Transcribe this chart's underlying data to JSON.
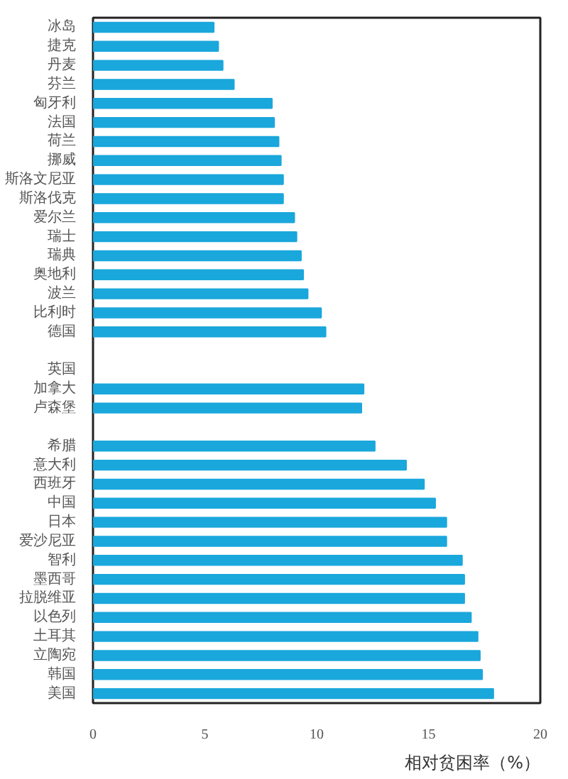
{
  "chart_data": {
    "type": "bar",
    "orientation": "horizontal",
    "xlabel": "相对贫困率（%）",
    "color": "#1aa7dc",
    "categories": [
      "冰岛",
      "捷克",
      "丹麦",
      "芬兰",
      "匈牙利",
      "法国",
      "荷兰",
      "挪威",
      "斯洛文尼亚",
      "斯洛伐克",
      "爱尔兰",
      "瑞士",
      "瑞典",
      "奥地利",
      "波兰",
      "比利时",
      "德国",
      null,
      "英国",
      "加拿大",
      "卢森堡",
      null,
      "希腊",
      "意大利",
      "西班牙",
      "中国",
      "日本",
      "爱沙尼亚",
      "智利",
      "墨西哥",
      "拉脱维亚",
      "以色列",
      "土耳其",
      "立陶宛",
      "韩国",
      "美国"
    ],
    "values": [
      5.4,
      5.6,
      5.8,
      6.3,
      8.0,
      8.1,
      8.3,
      8.4,
      8.5,
      8.5,
      9.0,
      9.1,
      9.3,
      9.4,
      9.6,
      10.2,
      10.4,
      null,
      null,
      12.1,
      12.0,
      null,
      12.6,
      14.0,
      14.8,
      15.3,
      15.8,
      15.8,
      16.5,
      16.6,
      16.6,
      16.9,
      17.2,
      17.3,
      17.4,
      17.9
    ],
    "xlim": [
      0,
      20
    ],
    "xticks": [
      0,
      5,
      10,
      15,
      20
    ],
    "grid": false
  }
}
